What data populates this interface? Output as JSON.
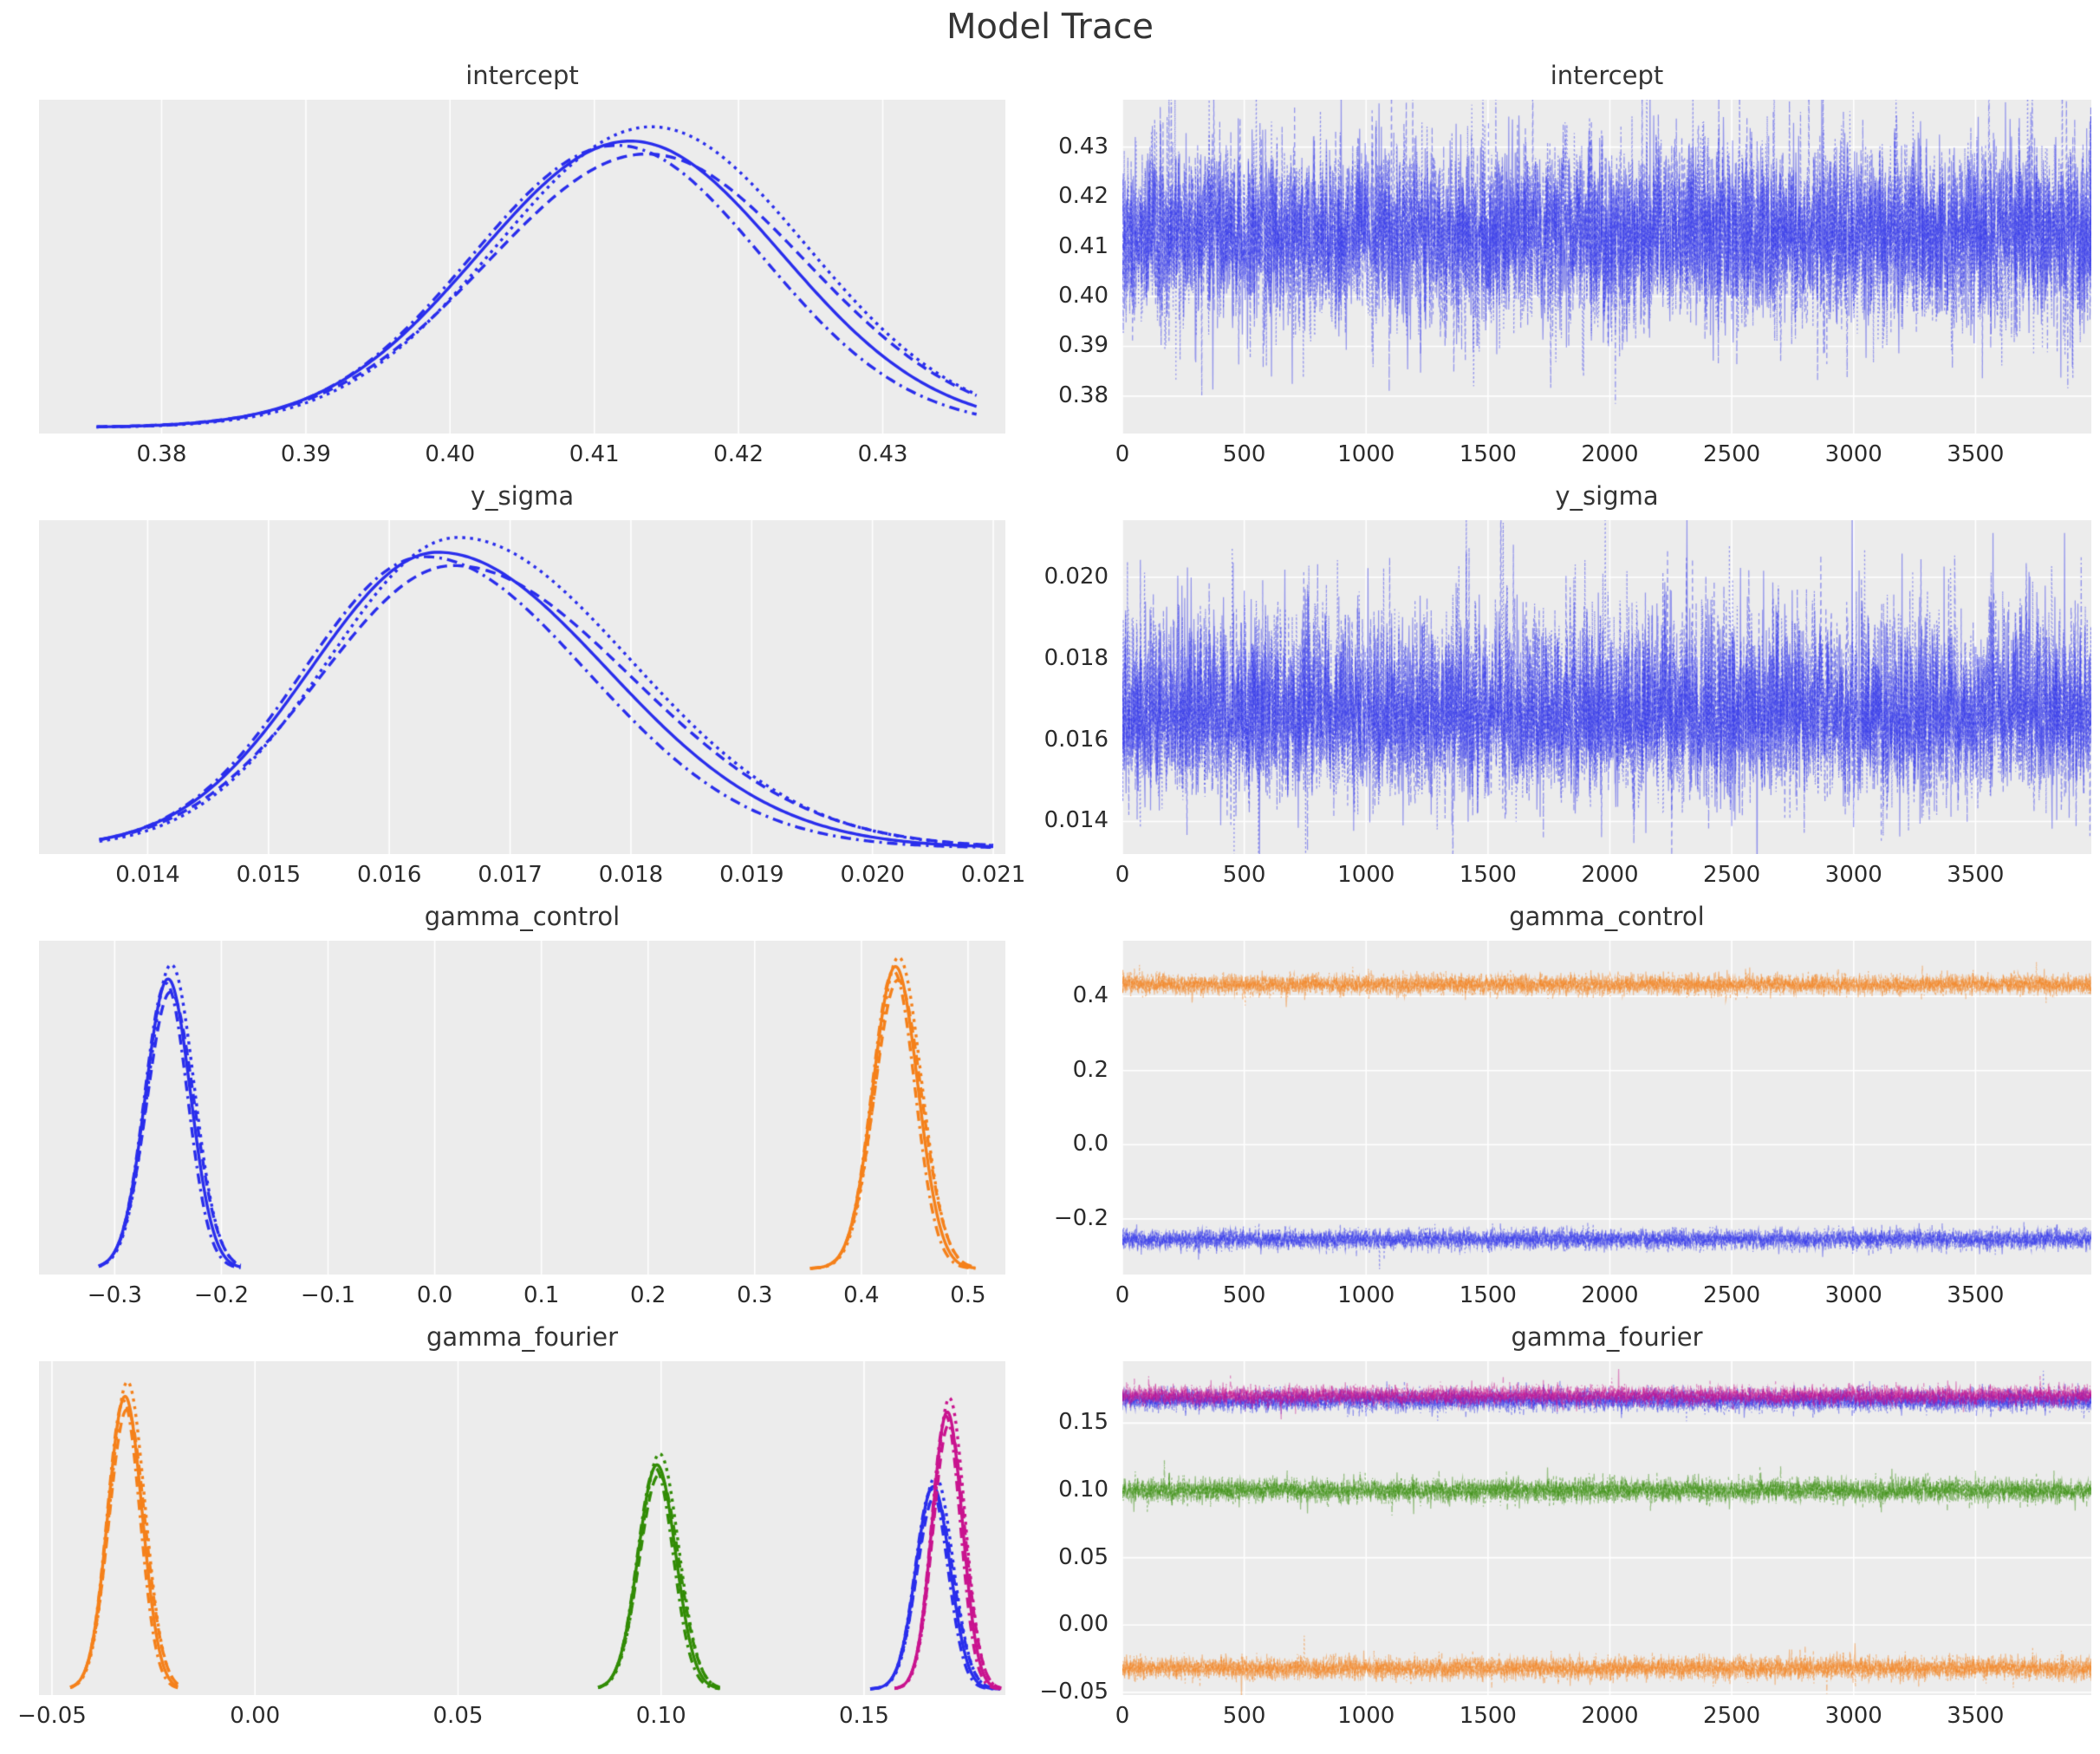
{
  "figure": {
    "title": "Model Trace",
    "n_chains": 4,
    "chain_linestyles": [
      "solid",
      "dashed",
      "dashdot",
      "dotted"
    ],
    "background": "#ffffff",
    "panel_background": "#ececec",
    "grid_color": "#ffffff",
    "title_color": "#343434",
    "tick_color": "#2b2b2b",
    "colors": {
      "blue": "#2a2eec",
      "orange": "#f5811b",
      "green": "#328c06",
      "magenta": "#c9148f"
    }
  },
  "chart_data": [
    {
      "param": "intercept",
      "kde": {
        "type": "line",
        "title": "intercept",
        "grid": "vertical",
        "xlim": [
          0.3715,
          0.4385
        ],
        "xtick_vals": [
          0.38,
          0.39,
          0.4,
          0.41,
          0.42,
          0.43
        ],
        "xticks": [
          "0.38",
          "0.39",
          "0.40",
          "0.41",
          "0.42",
          "0.43"
        ],
        "curves": [
          {
            "color": "blue",
            "mean": 0.4125,
            "sd": 0.0105,
            "peak": 0.92,
            "cut": [
              0.3755,
              0.4365
            ]
          }
        ]
      },
      "trace": {
        "type": "line",
        "title": "intercept",
        "grid": "both",
        "n_draws": 4000,
        "xlim": [
          0,
          3975
        ],
        "xtick_vals": [
          0,
          500,
          1000,
          1500,
          2000,
          2500,
          3000,
          3500
        ],
        "xticks": [
          "0",
          "500",
          "1000",
          "1500",
          "2000",
          "2500",
          "3000",
          "3500"
        ],
        "ylim": [
          0.3725,
          0.4395
        ],
        "ytick_vals": [
          0.43,
          0.42,
          0.41,
          0.4,
          0.39,
          0.38
        ],
        "yticks": [
          "0.43",
          "0.42",
          "0.41",
          "0.40",
          "0.39",
          "0.38"
        ],
        "series": [
          {
            "color": "blue",
            "mean": 0.4125,
            "sd": 0.0092
          }
        ]
      }
    },
    {
      "param": "y_sigma",
      "kde": {
        "type": "line",
        "title": "y_sigma",
        "grid": "vertical",
        "xlim": [
          0.0131,
          0.0211
        ],
        "xtick_vals": [
          0.014,
          0.015,
          0.016,
          0.017,
          0.018,
          0.019,
          0.02,
          0.021
        ],
        "xticks": [
          "0.014",
          "0.015",
          "0.016",
          "0.017",
          "0.018",
          "0.019",
          "0.020",
          "0.021"
        ],
        "curves": [
          {
            "color": "blue",
            "mean": 0.0164,
            "sd": 0.0012,
            "sd_left": 0.00105,
            "sd_right": 0.0014,
            "peak": 0.95,
            "cut": [
              0.0136,
              0.021
            ]
          }
        ]
      },
      "trace": {
        "type": "line",
        "title": "y_sigma",
        "grid": "both",
        "n_draws": 4000,
        "xlim": [
          0,
          3975
        ],
        "xtick_vals": [
          0,
          500,
          1000,
          1500,
          2000,
          2500,
          3000,
          3500
        ],
        "xticks": [
          "0",
          "500",
          "1000",
          "1500",
          "2000",
          "2500",
          "3000",
          "3500"
        ],
        "ylim": [
          0.0132,
          0.0214
        ],
        "ytick_vals": [
          0.02,
          0.018,
          0.016,
          0.014
        ],
        "yticks": [
          "0.020",
          "0.018",
          "0.016",
          "0.014"
        ],
        "series": [
          {
            "color": "blue",
            "mean": 0.0166,
            "sd": 0.00105,
            "sd_up": 0.0013,
            "sd_down": 0.00095
          }
        ]
      }
    },
    {
      "param": "gamma_control",
      "kde": {
        "type": "line",
        "title": "gamma_control",
        "grid": "vertical",
        "xlim": [
          -0.371,
          0.535
        ],
        "xtick_vals": [
          -0.3,
          -0.2,
          -0.1,
          0.0,
          0.1,
          0.2,
          0.3,
          0.4,
          0.5
        ],
        "xticks": [
          "−0.3",
          "−0.2",
          "−0.1",
          "0.0",
          "0.1",
          "0.2",
          "0.3",
          "0.4",
          "0.5"
        ],
        "curves": [
          {
            "color": "blue",
            "mean": -0.25,
            "sd": 0.021,
            "peak": 0.93,
            "cut": [
              -0.315,
              -0.182
            ]
          },
          {
            "color": "orange",
            "mean": 0.432,
            "sd": 0.021,
            "peak": 0.97,
            "cut": [
              0.352,
              0.507
            ]
          }
        ]
      },
      "trace": {
        "type": "line",
        "title": "gamma_control",
        "grid": "both",
        "n_draws": 4000,
        "xlim": [
          0,
          3975
        ],
        "xtick_vals": [
          0,
          500,
          1000,
          1500,
          2000,
          2500,
          3000,
          3500
        ],
        "xticks": [
          "0",
          "500",
          "1000",
          "1500",
          "2000",
          "2500",
          "3000",
          "3500"
        ],
        "ylim": [
          -0.35,
          0.55
        ],
        "ytick_vals": [
          0.4,
          0.2,
          0.0,
          -0.2
        ],
        "yticks": [
          "0.4",
          "0.2",
          "0.0",
          "−0.2"
        ],
        "series": [
          {
            "color": "orange",
            "mean": 0.432,
            "sd": 0.013
          },
          {
            "color": "blue",
            "mean": -0.255,
            "sd": 0.013
          }
        ]
      }
    },
    {
      "param": "gamma_fourier",
      "kde": {
        "type": "line",
        "title": "gamma_fourier",
        "grid": "vertical",
        "xlim": [
          -0.0532,
          0.1848
        ],
        "xtick_vals": [
          -0.05,
          0.0,
          0.05,
          0.1,
          0.15
        ],
        "xticks": [
          "−0.05",
          "0.00",
          "0.05",
          "0.10",
          "0.15"
        ],
        "curves": [
          {
            "color": "orange",
            "mean": -0.032,
            "sd": 0.0042,
            "peak": 0.94,
            "cut": [
              -0.0455,
              -0.019
            ]
          },
          {
            "color": "green",
            "mean": 0.099,
            "sd": 0.0046,
            "peak": 0.72,
            "cut": [
              0.0845,
              0.1145
            ]
          },
          {
            "color": "blue",
            "mean": 0.167,
            "sd": 0.0042,
            "peak": 0.65,
            "cut": [
              0.1515,
              0.1835
            ]
          },
          {
            "color": "magenta",
            "mean": 0.1705,
            "sd": 0.0037,
            "peak": 0.89,
            "cut": [
              0.1575,
              0.1838
            ]
          }
        ]
      },
      "trace": {
        "type": "line",
        "title": "gamma_fourier",
        "grid": "both",
        "n_draws": 4000,
        "xlim": [
          0,
          3975
        ],
        "xtick_vals": [
          0,
          500,
          1000,
          1500,
          2000,
          2500,
          3000,
          3500
        ],
        "xticks": [
          "0",
          "500",
          "1000",
          "1500",
          "2000",
          "2500",
          "3000",
          "3500"
        ],
        "ylim": [
          -0.052,
          0.196
        ],
        "ytick_vals": [
          0.15,
          0.1,
          0.05,
          0.0,
          -0.05
        ],
        "yticks": [
          "0.15",
          "0.10",
          "0.05",
          "0.00",
          "−0.05"
        ],
        "series": [
          {
            "color": "blue",
            "mean": 0.167,
            "sd": 0.0038
          },
          {
            "color": "magenta",
            "mean": 0.1705,
            "sd": 0.0034
          },
          {
            "color": "green",
            "mean": 0.1,
            "sd": 0.0042
          },
          {
            "color": "orange",
            "mean": -0.032,
            "sd": 0.004
          }
        ]
      }
    }
  ]
}
